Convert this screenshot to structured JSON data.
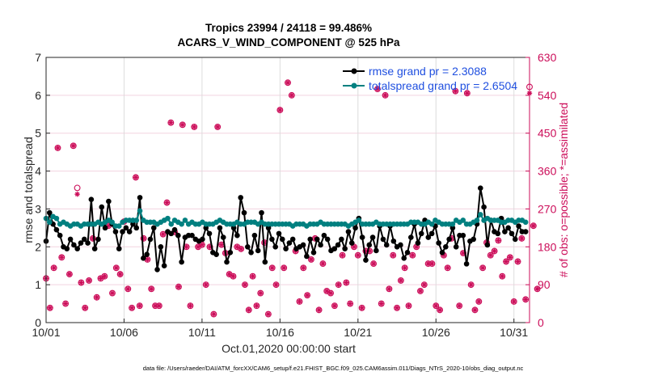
{
  "chart_data": {
    "type": "line",
    "title": "Tropics 23994 / 24118 = 99.486%",
    "subtitle": "ACARS_V_WIND_COMPONENT @ 525 hPa",
    "xlabel": "Oct.01,2020 00:00:00 start",
    "ylabel": "rmse and totalspread",
    "ylabel_right": "# of obs: o=possible; *=assimilated",
    "footnote": "data file: /Users/raeder/DAI/ATM_forcXX/CAM6_setup/f.e21.FHIST_BGC.f09_025.CAM6assim.011/Diags_NTrS_2020-10/obs_diag_output.nc",
    "xlim_days": [
      0,
      31
    ],
    "ylim": [
      0,
      7
    ],
    "ylim_right": [
      0,
      630
    ],
    "grid": true,
    "x_tick_days": [
      0,
      5,
      10,
      15,
      20,
      25,
      30
    ],
    "x_tick_labels": [
      "10/01",
      "10/06",
      "10/11",
      "10/16",
      "10/21",
      "10/26",
      "10/31"
    ],
    "y_ticks": [
      0,
      1,
      2,
      3,
      4,
      5,
      6,
      7
    ],
    "y_tick_labels": [
      "0",
      "1",
      "2",
      "3",
      "4",
      "5",
      "6",
      "7"
    ],
    "y_right_ticks": [
      0,
      90,
      180,
      270,
      360,
      450,
      540,
      630
    ],
    "y_right_tick_labels": [
      "0",
      "90",
      "180",
      "270",
      "360",
      "450",
      "540",
      "630"
    ],
    "legend_position": "top-right",
    "colors": {
      "rmse": "#000000",
      "totalspread": "#008080",
      "obs": "#cc0e5a",
      "legend_text": "#1f4fe0"
    },
    "x_step_days": 0.25,
    "series": [
      {
        "name": "rmse grand pr = 2.3088",
        "key": "rmse",
        "values": [
          2.15,
          2.9,
          2.6,
          2.45,
          2.3,
          2.0,
          1.95,
          2.2,
          2.05,
          1.95,
          2.1,
          2.2,
          2.1,
          3.25,
          1.95,
          2.2,
          3.05,
          2.5,
          3.2,
          2.6,
          2.4,
          1.95,
          2.4,
          2.5,
          2.4,
          2.6,
          2.5,
          3.3,
          1.7,
          1.8,
          2.2,
          2.5,
          1.4,
          2.0,
          1.5,
          2.4,
          2.35,
          2.45,
          2.3,
          1.6,
          2.25,
          2.3,
          2.3,
          2.2,
          2.15,
          2.2,
          2.5,
          2.35,
          1.85,
          1.8,
          2.5,
          2.25,
          1.6,
          1.85,
          2.5,
          2.3,
          3.3,
          2.9,
          2.0,
          1.85,
          2.3,
          1.9,
          2.9,
          1.6,
          2.5,
          2.2,
          2.0,
          2.35,
          2.2,
          1.95,
          2.1,
          2.2,
          1.95,
          2.0,
          2.05,
          1.75,
          2.2,
          1.85,
          2.2,
          2.05,
          2.3,
          2.2,
          1.9,
          1.95,
          2.05,
          2.2,
          1.95,
          2.4,
          2.1,
          2.5,
          2.75,
          2.25,
          1.65,
          2.05,
          2.25,
          1.9,
          2.55,
          2.2,
          2.05,
          2.55,
          2.15,
          2.0,
          2.05,
          1.7,
          1.85,
          2.25,
          2.6,
          2.1,
          2.35,
          2.7,
          2.25,
          2.35,
          2.55,
          2.1,
          1.85,
          2.0,
          2.2,
          2.5,
          2.0,
          2.3,
          2.3,
          1.55,
          2.15,
          2.2
        ],
        "values_tail": [
          2.6,
          3.55,
          3.05,
          2.05,
          2.7,
          2.4,
          2.35,
          2.75,
          2.4,
          2.5,
          2.35,
          2.2,
          2.55,
          2.4,
          2.4
        ]
      },
      {
        "name": "totalspread grand pr = 2.6504",
        "key": "totalspread",
        "values": [
          2.75,
          2.65,
          2.8,
          2.75,
          2.6,
          2.65,
          2.6,
          2.55,
          2.6,
          2.6,
          2.55,
          2.6,
          2.6,
          2.6,
          2.6,
          2.65,
          2.6,
          2.65,
          2.7,
          2.65,
          2.55,
          2.55,
          2.65,
          2.7,
          2.7,
          2.7,
          2.7,
          2.95,
          2.7,
          2.65,
          2.65,
          2.65,
          2.6,
          2.65,
          2.7,
          2.75,
          2.6,
          2.7,
          2.65,
          2.6,
          2.7,
          2.6,
          2.65,
          2.6,
          2.6,
          2.65,
          2.6,
          2.6,
          2.6,
          2.65,
          2.7,
          2.65,
          2.6,
          2.6,
          2.6,
          2.65,
          2.6,
          2.6,
          2.65,
          2.65,
          2.65,
          2.6,
          2.65,
          2.6,
          2.6,
          2.6,
          2.6,
          2.6,
          2.6,
          2.6,
          2.6,
          2.55,
          2.6,
          2.6,
          2.6,
          2.55,
          2.6,
          2.6,
          2.6,
          2.65,
          2.6,
          2.6,
          2.6,
          2.6,
          2.6,
          2.6,
          2.6,
          2.55,
          2.6,
          2.65,
          2.7,
          2.6,
          2.6,
          2.6,
          2.6,
          2.65,
          2.6,
          2.6,
          2.6,
          2.6,
          2.6,
          2.6,
          2.6,
          2.6,
          2.6,
          2.65,
          2.65,
          2.65,
          2.6,
          2.6,
          2.65,
          2.6,
          2.7,
          2.65,
          2.6,
          2.6,
          2.6,
          2.6,
          2.7,
          2.65,
          2.7,
          2.6,
          2.6,
          2.65
        ],
        "values_tail": [
          2.7,
          2.85,
          2.7,
          2.75,
          2.7,
          2.7,
          2.7,
          2.65,
          2.65,
          2.7,
          2.7,
          2.65,
          2.7,
          2.7,
          2.65
        ]
      }
    ],
    "obs_possible": [
      105,
      35,
      130,
      415,
      155,
      45,
      115,
      420,
      320,
      95,
      35,
      100,
      200,
      60,
      105,
      110,
      230,
      70,
      130,
      115,
      240,
      80,
      35,
      345,
      40,
      200,
      150,
      80,
      40,
      40,
      210,
      285,
      475,
      215,
      85,
      470,
      180,
      40,
      465,
      180,
      185,
      90,
      180,
      20,
      465,
      185,
      165,
      115,
      110,
      180,
      175,
      90,
      30,
      110,
      40,
      70,
      190,
      20,
      130,
      90,
      505,
      130,
      570,
      540,
      170,
      50,
      130,
      65,
      150,
      200,
      30,
      140,
      75,
      70,
      40,
      90,
      160,
      95,
      45,
      180,
      160,
      35,
      170,
      170,
      140,
      555,
      45,
      540,
      80,
      160,
      35,
      100,
      130,
      40,
      160,
      180,
      75,
      90,
      140,
      140,
      40,
      30,
      160,
      130,
      200,
      550,
      40,
      165,
      545,
      90,
      30,
      50,
      130,
      190,
      160,
      170,
      195,
      110,
      145,
      155,
      50,
      145,
      200,
      55,
      560,
      230,
      80
    ],
    "obs_assimilated": [
      105,
      35,
      130,
      415,
      155,
      45,
      115,
      420,
      305,
      95,
      35,
      100,
      200,
      60,
      105,
      110,
      230,
      70,
      130,
      115,
      240,
      80,
      35,
      345,
      40,
      200,
      150,
      80,
      40,
      40,
      210,
      285,
      475,
      215,
      85,
      470,
      180,
      40,
      465,
      180,
      185,
      90,
      180,
      20,
      465,
      185,
      165,
      115,
      110,
      180,
      175,
      90,
      30,
      110,
      40,
      70,
      190,
      20,
      130,
      90,
      505,
      130,
      570,
      540,
      170,
      50,
      130,
      65,
      150,
      200,
      30,
      140,
      75,
      70,
      40,
      90,
      160,
      95,
      45,
      180,
      160,
      35,
      170,
      170,
      140,
      555,
      45,
      540,
      80,
      160,
      35,
      100,
      130,
      40,
      160,
      180,
      75,
      90,
      140,
      140,
      40,
      30,
      160,
      130,
      200,
      550,
      40,
      165,
      545,
      90,
      30,
      50,
      130,
      190,
      160,
      170,
      195,
      110,
      145,
      155,
      50,
      145,
      200,
      55,
      545,
      230,
      80
    ]
  }
}
